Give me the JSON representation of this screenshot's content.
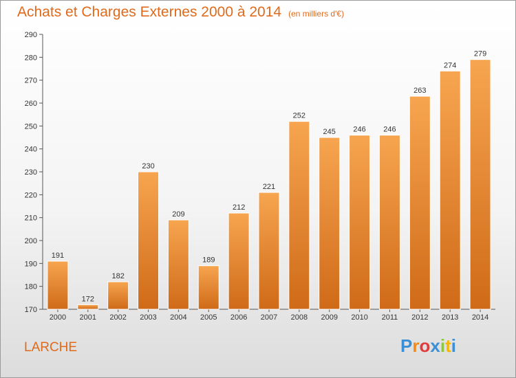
{
  "title": "Achats et Charges Externes 2000 à 2014",
  "subtitle": "(en milliers d'€)",
  "commune": "LARCHE",
  "brand": {
    "letters": [
      "P",
      "r",
      "o",
      "x",
      "i",
      "t",
      "i"
    ],
    "colors": [
      "#3a8fd6",
      "#f08a1c",
      "#e23b3b",
      "#3a8fd6",
      "#8dc63f",
      "#f5b700",
      "#3a8fd6"
    ]
  },
  "colors": {
    "bar_light": "#f7a550",
    "bar_dark": "#cf6a18",
    "accent": "#e06a1c"
  },
  "chart_data": {
    "type": "bar",
    "categories": [
      "2000",
      "2001",
      "2002",
      "2003",
      "2004",
      "2005",
      "2006",
      "2007",
      "2008",
      "2009",
      "2010",
      "2011",
      "2012",
      "2013",
      "2014"
    ],
    "values": [
      191,
      172,
      182,
      230,
      209,
      189,
      212,
      221,
      252,
      245,
      246,
      246,
      263,
      274,
      279
    ],
    "ylim": [
      170,
      290
    ],
    "yticks": [
      170,
      180,
      190,
      200,
      210,
      220,
      230,
      240,
      250,
      260,
      270,
      280,
      290
    ],
    "grid": false,
    "legend": "none"
  }
}
